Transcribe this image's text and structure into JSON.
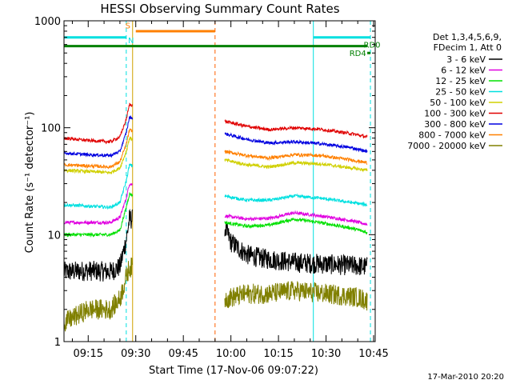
{
  "chart_data": {
    "type": "line",
    "title": "HESSI Observing Summary Count Rates",
    "xlabel": "Start Time (17-Nov-06 09:07:22)",
    "ylabel": "Count Rate (s⁻¹ detector⁻¹)",
    "yscale": "log",
    "ylim": [
      1,
      1000
    ],
    "xlim": [
      "09:07:22",
      "10:45:30"
    ],
    "x_ticks": [
      "09:15",
      "09:30",
      "09:45",
      "10:00",
      "10:15",
      "10:30",
      "10:45"
    ],
    "y_ticks": [
      "1",
      "10",
      "100",
      "1000"
    ],
    "legend_header": [
      "Det 1,3,4,5,6,9,",
      "FDecim 1, Att 0"
    ],
    "legend_position": "right",
    "data_gap": [
      "09:29:00",
      "09:58:00"
    ],
    "series": [
      {
        "name": "3 - 6 keV",
        "color": "#000000",
        "points": [
          [
            "09:07:22",
            4.5
          ],
          [
            "09:15",
            4.6
          ],
          [
            "09:22",
            4.5
          ],
          [
            "09:25",
            5
          ],
          [
            "09:27",
            9
          ],
          [
            "09:28",
            14
          ],
          [
            "09:58",
            12
          ],
          [
            "10:00",
            8.5
          ],
          [
            "10:05",
            6.5
          ],
          [
            "10:10",
            6
          ],
          [
            "10:20",
            5.5
          ],
          [
            "10:30",
            5.3
          ],
          [
            "10:40",
            5.1
          ],
          [
            "10:43",
            5
          ]
        ]
      },
      {
        "name": "6 - 12 keV",
        "color": "#e000e0",
        "points": [
          [
            "09:07:22",
            13
          ],
          [
            "09:15",
            13
          ],
          [
            "09:22",
            13
          ],
          [
            "09:25",
            14.5
          ],
          [
            "09:27",
            22
          ],
          [
            "09:28",
            30
          ],
          [
            "09:58",
            15
          ],
          [
            "10:05",
            14
          ],
          [
            "10:12",
            14.2
          ],
          [
            "10:20",
            16
          ],
          [
            "10:28",
            15
          ],
          [
            "10:38",
            13.5
          ],
          [
            "10:43",
            12.5
          ]
        ]
      },
      {
        "name": "12 - 25 keV",
        "color": "#00e000",
        "points": [
          [
            "09:07:22",
            10
          ],
          [
            "09:15",
            10
          ],
          [
            "09:22",
            10
          ],
          [
            "09:25",
            11
          ],
          [
            "09:27",
            18
          ],
          [
            "09:28",
            24
          ],
          [
            "09:58",
            13
          ],
          [
            "10:05",
            12
          ],
          [
            "10:12",
            12.3
          ],
          [
            "10:20",
            14
          ],
          [
            "10:28",
            13
          ],
          [
            "10:38",
            11.5
          ],
          [
            "10:43",
            10.5
          ]
        ]
      },
      {
        "name": "25 - 50 keV",
        "color": "#00e0e0",
        "points": [
          [
            "09:07:22",
            19
          ],
          [
            "09:15",
            18.5
          ],
          [
            "09:22",
            18
          ],
          [
            "09:25",
            20
          ],
          [
            "09:27",
            32
          ],
          [
            "09:28",
            45
          ],
          [
            "09:58",
            23
          ],
          [
            "10:05",
            21
          ],
          [
            "10:12",
            21
          ],
          [
            "10:20",
            23
          ],
          [
            "10:28",
            22
          ],
          [
            "10:38",
            20
          ],
          [
            "10:43",
            19
          ]
        ]
      },
      {
        "name": "50 - 100 keV",
        "color": "#d0d000",
        "points": [
          [
            "09:07:22",
            40
          ],
          [
            "09:15",
            39
          ],
          [
            "09:22",
            38
          ],
          [
            "09:25",
            42
          ],
          [
            "09:27",
            60
          ],
          [
            "09:28",
            80
          ],
          [
            "09:58",
            50
          ],
          [
            "10:05",
            45
          ],
          [
            "10:12",
            43
          ],
          [
            "10:20",
            47
          ],
          [
            "10:28",
            46
          ],
          [
            "10:38",
            42
          ],
          [
            "10:43",
            40
          ]
        ]
      },
      {
        "name": "100 - 300 keV",
        "color": "#e00000",
        "points": [
          [
            "09:07:22",
            80
          ],
          [
            "09:15",
            76
          ],
          [
            "09:22",
            74
          ],
          [
            "09:25",
            82
          ],
          [
            "09:27",
            120
          ],
          [
            "09:28",
            165
          ],
          [
            "09:58",
            115
          ],
          [
            "10:05",
            103
          ],
          [
            "10:12",
            96
          ],
          [
            "10:20",
            100
          ],
          [
            "10:28",
            97
          ],
          [
            "10:38",
            88
          ],
          [
            "10:43",
            82
          ]
        ]
      },
      {
        "name": "300 - 800 keV",
        "color": "#0000e0",
        "points": [
          [
            "09:07:22",
            58
          ],
          [
            "09:15",
            56
          ],
          [
            "09:22",
            55
          ],
          [
            "09:25",
            60
          ],
          [
            "09:27",
            90
          ],
          [
            "09:28",
            125
          ],
          [
            "09:58",
            88
          ],
          [
            "10:05",
            78
          ],
          [
            "10:12",
            72
          ],
          [
            "10:20",
            74
          ],
          [
            "10:28",
            71
          ],
          [
            "10:38",
            65
          ],
          [
            "10:43",
            60
          ]
        ]
      },
      {
        "name": "800 - 7000 keV",
        "color": "#ff8000",
        "points": [
          [
            "09:07:22",
            45
          ],
          [
            "09:15",
            44
          ],
          [
            "09:22",
            43
          ],
          [
            "09:25",
            48
          ],
          [
            "09:27",
            70
          ],
          [
            "09:28",
            95
          ],
          [
            "09:58",
            60
          ],
          [
            "10:05",
            55
          ],
          [
            "10:12",
            52
          ],
          [
            "10:20",
            56
          ],
          [
            "10:28",
            55
          ],
          [
            "10:38",
            50
          ],
          [
            "10:43",
            47
          ]
        ]
      },
      {
        "name": "7000 - 20000 keV",
        "color": "#808000",
        "points": [
          [
            "09:07:22",
            1.5
          ],
          [
            "09:15",
            2
          ],
          [
            "09:22",
            2
          ],
          [
            "09:25",
            2.5
          ],
          [
            "09:27",
            4
          ],
          [
            "09:28",
            5
          ],
          [
            "09:58",
            2.5
          ],
          [
            "10:05",
            2.8
          ],
          [
            "10:12",
            2.8
          ],
          [
            "10:20",
            3
          ],
          [
            "10:30",
            2.8
          ],
          [
            "10:40",
            2.6
          ],
          [
            "10:43",
            2.4
          ]
        ]
      }
    ],
    "flag_bars": [
      {
        "color": "#00e0e0",
        "value": 700,
        "segments": [
          [
            "09:07:22",
            "09:27:00"
          ],
          [
            "10:26:00",
            "10:44:00"
          ]
        ]
      },
      {
        "color": "#ff8000",
        "value": 800,
        "segments": [
          [
            "09:30:00",
            "09:55:00"
          ]
        ]
      },
      {
        "color": "#008000",
        "value": 580,
        "segments": [
          [
            "09:07:22",
            "10:43:00"
          ]
        ]
      },
      {
        "color": "#008000",
        "value": 500,
        "segments": [
          [
            "10:43:00",
            "10:44:00"
          ]
        ]
      }
    ],
    "vertical_markers": [
      {
        "time": "09:27:00",
        "color": "#00e0e0",
        "style": "dashed"
      },
      {
        "time": "09:29:00",
        "color": "#d0a000",
        "style": "solid"
      },
      {
        "time": "09:55:00",
        "color": "#ff6000",
        "style": "dashed"
      },
      {
        "time": "10:26:00",
        "color": "#00e0e0",
        "style": "solid"
      },
      {
        "time": "10:44:00",
        "color": "#00e0e0",
        "style": "dashed"
      }
    ],
    "flag_labels": [
      {
        "text": "S",
        "color": "#ff8000",
        "time": "09:27:30",
        "value": 850
      },
      {
        "text": "N",
        "color": "#00e0e0",
        "time": "09:28:30",
        "value": 620
      },
      {
        "text": "RD0",
        "color": "#008000",
        "time": "10:44:30",
        "value": 560
      },
      {
        "text": "RD4",
        "color": "#008000",
        "time": "10:40:00",
        "value": 470
      }
    ]
  },
  "footer": {
    "date_stamp": "17-Mar-2010 20:20"
  }
}
